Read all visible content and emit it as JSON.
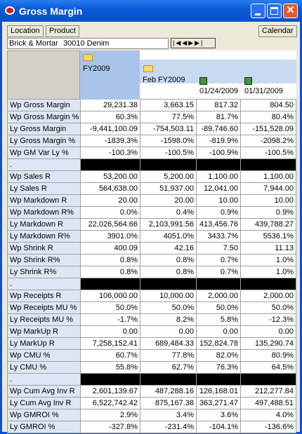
{
  "window": {
    "title": "Gross Margin"
  },
  "toolbar": {
    "buttons": [
      "Location",
      "Product"
    ],
    "calendar": "Calendar"
  },
  "filters": [
    "Brick & Mortar",
    "30010 Denim"
  ],
  "table": {
    "columns": [
      "FY2009",
      "Feb FY2009",
      "01/24/2009",
      "01/31/2009"
    ],
    "rows": [
      {
        "label": "Wp Gross Margin",
        "values": [
          "29,231.38",
          "3,663.15",
          "817.32",
          "804.50"
        ]
      },
      {
        "label": "Wp Gross Margin %",
        "values": [
          "60.3%",
          "77.5%",
          "81.7%",
          "80.4%"
        ]
      },
      {
        "label": "Ly Gross Margin",
        "values": [
          "-9,441,100.09",
          "-754,503.11",
          "-89,746.60",
          "-151,528.09"
        ]
      },
      {
        "label": "Ly Gross Margin %",
        "values": [
          "-1839.3%",
          "-1598.0%",
          "-819.9%",
          "-2098.2%"
        ]
      },
      {
        "label": "Wp GM Var Ly %",
        "values": [
          "-100.3%",
          "-100.5%",
          "-100.9%",
          "-100.5%"
        ]
      },
      {
        "label": "."
      },
      {
        "label": "Wp Sales R",
        "values": [
          "53,200.00",
          "5,200.00",
          "1,100.00",
          "1,100.00"
        ]
      },
      {
        "label": "Ly Sales R",
        "values": [
          "564,638.00",
          "51,937.00",
          "12,041.00",
          "7,944.00"
        ]
      },
      {
        "label": "Wp Markdown R",
        "values": [
          "20.00",
          "20.00",
          "10.00",
          "10.00"
        ]
      },
      {
        "label": "Wp Markdown R%",
        "values": [
          "0.0%",
          "0.4%",
          "0.9%",
          "0.9%"
        ]
      },
      {
        "label": "Ly Markdown R",
        "values": [
          "22,026,564.66",
          "2,103,991.56",
          "413,456.76",
          "439,788.27"
        ]
      },
      {
        "label": "Ly Markdown R%",
        "values": [
          "3901.0%",
          "4051.0%",
          "3433.7%",
          "5536.1%"
        ]
      },
      {
        "label": "Wp Shrink R",
        "values": [
          "400.09",
          "42.16",
          "7.50",
          "11.13"
        ]
      },
      {
        "label": "Wp Shrink R%",
        "values": [
          "0.8%",
          "0.8%",
          "0.7%",
          "1.0%"
        ]
      },
      {
        "label": "Ly Shrink R%",
        "values": [
          "0.8%",
          "0.8%",
          "0.7%",
          "1.0%"
        ]
      },
      {
        "label": "."
      },
      {
        "label": "Wp Receipts R",
        "values": [
          "106,000.00",
          "10,000.00",
          "2,000.00",
          "2,000.00"
        ]
      },
      {
        "label": "Wp Receipts MU %",
        "values": [
          "50.0%",
          "50.0%",
          "50.0%",
          "50.0%"
        ]
      },
      {
        "label": "Ly Receipts MU %",
        "values": [
          "-1.7%",
          "8.2%",
          "5.8%",
          "-12.3%"
        ]
      },
      {
        "label": "Wp MarkUp R",
        "values": [
          "0.00",
          "0.00",
          "0.00",
          "0.00"
        ]
      },
      {
        "label": "Ly MarkUp R",
        "values": [
          "7,258,152.41",
          "689,484.33",
          "152,824.78",
          "135,290.74"
        ]
      },
      {
        "label": "Wp CMU %",
        "values": [
          "60.7%",
          "77.8%",
          "82.0%",
          "80.9%"
        ]
      },
      {
        "label": "Ly CMU %",
        "values": [
          "55.8%",
          "62.7%",
          "76.3%",
          "64.5%"
        ]
      },
      {
        "label": "."
      },
      {
        "label": "Wp Cum Avg Inv R",
        "values": [
          "2,601,139.67",
          "487,288.16",
          "126,168.01",
          "212,277.84"
        ]
      },
      {
        "label": "Ly Cum Avg Inv R",
        "values": [
          "6,522,742.42",
          "875,167.38",
          "363,271.47",
          "497,488.51"
        ]
      },
      {
        "label": "Wp GMROI %",
        "values": [
          "2.9%",
          "3.4%",
          "3.6%",
          "4.0%"
        ]
      },
      {
        "label": "Ly GMROI %",
        "values": [
          "-327.8%",
          "-231.4%",
          "-104.1%",
          "-136.6%"
        ]
      }
    ]
  }
}
